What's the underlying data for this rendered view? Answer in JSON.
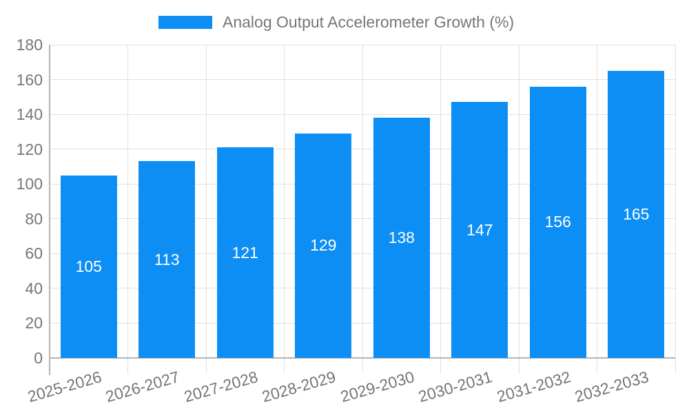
{
  "legend": {
    "label": "Analog Output Accelerometer Growth (%)"
  },
  "chart_data": {
    "type": "bar",
    "title": "Analog Output Accelerometer Growth (%)",
    "series_name": "Analog Output Accelerometer Growth (%)",
    "categories": [
      "2025-2026",
      "2026-2027",
      "2027-2028",
      "2028-2029",
      "2029-2030",
      "2030-2031",
      "2031-2032",
      "2032-2033"
    ],
    "values": [
      105,
      113,
      121,
      129,
      138,
      147,
      156,
      165
    ],
    "value_labels": [
      "105",
      "113",
      "121",
      "129",
      "138",
      "147",
      "156",
      "165"
    ],
    "xlabel": "",
    "ylabel": "",
    "ylim": [
      0,
      180
    ],
    "yticks": [
      0,
      20,
      40,
      60,
      80,
      100,
      120,
      140,
      160,
      180
    ],
    "grid": true,
    "legend_position": "top-center",
    "value_label_position": "inside-center",
    "x_label_rotation_deg": -16
  },
  "colors": {
    "bar": "#0d8ef5",
    "value_label": "#ffffff",
    "axis_text": "#757575",
    "grid_line": "#e0e0e0",
    "axis_line": "#b3b3b3",
    "background": "#ffffff"
  }
}
